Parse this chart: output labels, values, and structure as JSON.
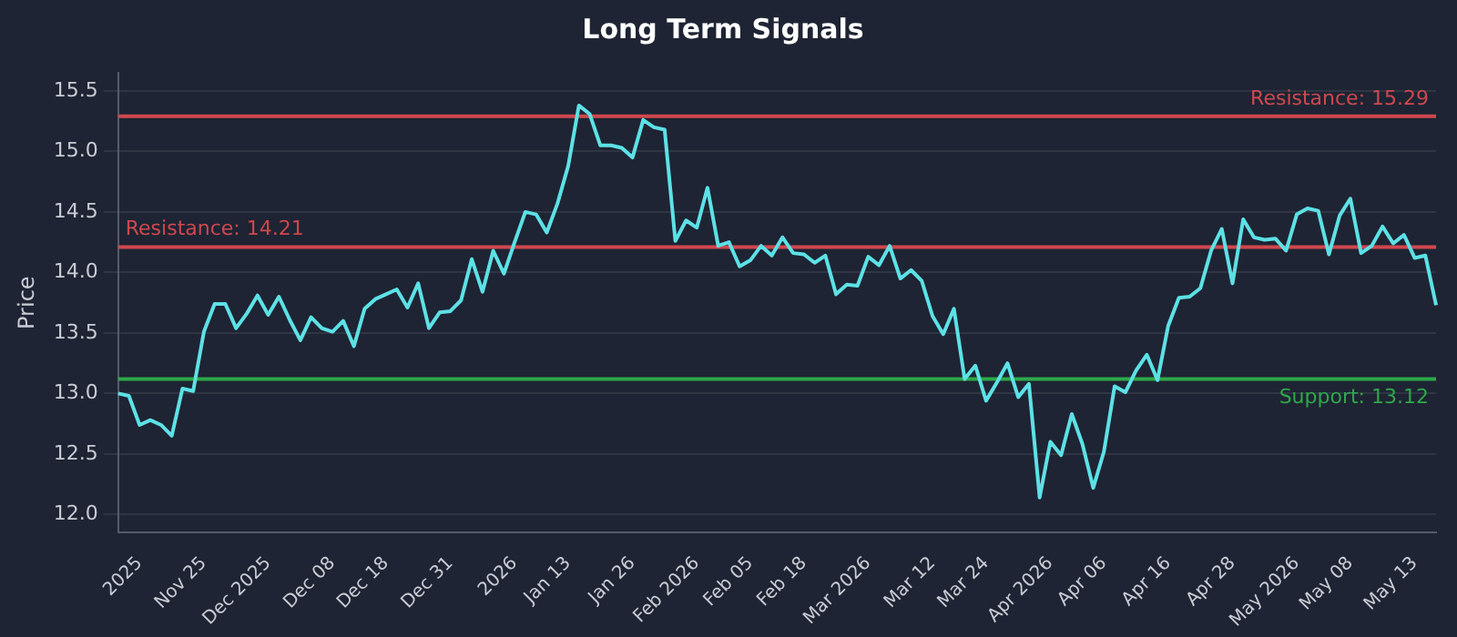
{
  "chart_data": {
    "type": "line",
    "title": "Long Term Signals",
    "ylabel": "Price",
    "categories": [
      null,
      null,
      "2025",
      null,
      null,
      null,
      null,
      null,
      "Nov 25",
      null,
      null,
      null,
      null,
      null,
      "Dec 2025",
      null,
      null,
      null,
      null,
      null,
      "Dec 08",
      null,
      null,
      null,
      null,
      "Dec 18",
      null,
      null,
      null,
      null,
      null,
      "Dec 31",
      null,
      null,
      null,
      null,
      null,
      "2026",
      null,
      null,
      null,
      null,
      "Jan 13",
      null,
      null,
      null,
      null,
      null,
      "Jan 26",
      null,
      null,
      null,
      null,
      null,
      "Feb 2026",
      null,
      null,
      null,
      null,
      "Feb 05",
      null,
      null,
      null,
      null,
      "Feb 18",
      null,
      null,
      null,
      null,
      null,
      "Mar 2026",
      null,
      null,
      null,
      null,
      null,
      "Mar 12",
      null,
      null,
      null,
      null,
      "Mar 24",
      null,
      null,
      null,
      null,
      null,
      "Apr 2026",
      null,
      null,
      null,
      null,
      "Apr 06",
      null,
      null,
      null,
      null,
      null,
      "Apr 16",
      null,
      null,
      null,
      null,
      null,
      "Apr 28",
      null,
      null,
      null,
      null,
      null,
      "May 2026",
      null,
      null,
      null,
      null,
      "May 08",
      null,
      null,
      null,
      null,
      null,
      "May 13",
      null,
      null
    ],
    "series": [
      {
        "color": "#5ce1e6",
        "values": [
          13.0,
          12.98,
          12.74,
          12.78,
          12.74,
          12.65,
          13.04,
          13.02,
          13.51,
          13.74,
          13.74,
          13.54,
          13.66,
          13.81,
          13.65,
          13.8,
          13.61,
          13.44,
          13.63,
          13.54,
          13.51,
          13.6,
          13.39,
          13.7,
          13.78,
          13.82,
          13.86,
          13.71,
          13.91,
          13.54,
          13.67,
          13.68,
          13.77,
          14.11,
          13.84,
          14.18,
          13.99,
          14.25,
          14.5,
          14.48,
          14.33,
          14.57,
          14.88,
          15.38,
          15.31,
          15.05,
          15.05,
          15.03,
          14.95,
          15.26,
          15.2,
          15.18,
          14.26,
          14.43,
          14.37,
          14.7,
          14.22,
          14.25,
          14.05,
          14.1,
          14.22,
          14.14,
          14.29,
          14.16,
          14.15,
          14.08,
          14.14,
          13.82,
          13.9,
          13.89,
          14.13,
          14.06,
          14.22,
          13.95,
          14.02,
          13.93,
          13.64,
          13.49,
          13.7,
          13.12,
          13.23,
          12.94,
          13.09,
          13.25,
          12.97,
          13.08,
          12.14,
          12.6,
          12.49,
          12.83,
          12.58,
          12.22,
          12.52,
          13.06,
          13.01,
          13.19,
          13.32,
          13.11,
          13.56,
          13.79,
          13.8,
          13.87,
          14.18,
          14.36,
          13.91,
          14.44,
          14.29,
          14.27,
          14.28,
          14.18,
          14.48,
          14.53,
          14.51,
          14.15,
          14.47,
          14.61,
          14.16,
          14.22,
          14.38,
          14.24,
          14.31,
          14.12,
          14.14,
          13.73
        ]
      }
    ],
    "ylim": [
      11.85,
      15.65
    ],
    "yticks": [
      {
        "value": 12,
        "label": "12.0"
      },
      {
        "value": 12.5,
        "label": "12.5"
      },
      {
        "value": 13,
        "label": "13.0"
      },
      {
        "value": 13.5,
        "label": "13.5"
      },
      {
        "value": 14,
        "label": "14.0"
      },
      {
        "value": 14.5,
        "label": "14.5"
      },
      {
        "value": 15,
        "label": "15.0"
      },
      {
        "value": 15.5,
        "label": "15.5"
      }
    ],
    "ref_lines": [
      {
        "axis": "y",
        "value": 15.29,
        "label": "Resistance: 15.29",
        "color": "#d0474f"
      },
      {
        "axis": "y",
        "value": 14.21,
        "label": "Resistance: 14.21",
        "color": "#d0474f"
      },
      {
        "axis": "y",
        "value": 13.12,
        "label": "Support: 13.12",
        "color": "#2ea84a"
      }
    ],
    "grid": "y",
    "legend": false,
    "marker": "none",
    "line_style": "solid"
  }
}
